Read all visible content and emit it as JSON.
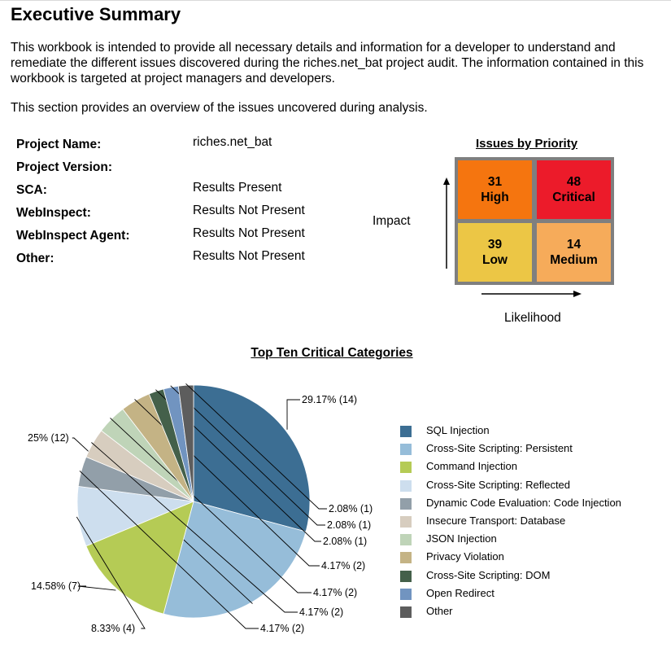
{
  "header": {
    "title": "Executive Summary",
    "intro": "This workbook is intended to provide all necessary details and information for a developer to understand and remediate the different issues discovered during the riches.net_bat project audit. The information contained in this workbook is targeted at project managers and developers.",
    "overview": "This section provides an overview of the issues uncovered during analysis."
  },
  "project_info": [
    {
      "label": "Project Name:",
      "value": "riches.net_bat"
    },
    {
      "label": "Project Version:",
      "value": ""
    },
    {
      "label": "SCA:",
      "value": "Results Present"
    },
    {
      "label": "WebInspect:",
      "value": "Results Not Present"
    },
    {
      "label": "WebInspect Agent:",
      "value": "Results Not Present"
    },
    {
      "label": "Other:",
      "value": "Results Not Present"
    }
  ],
  "priority_grid": {
    "title": "Issues by Priority",
    "y_axis_label": "Impact",
    "x_axis_label": "Likelihood",
    "cells": {
      "high": {
        "count": "31",
        "label": "High",
        "color": "#f5750f"
      },
      "critical": {
        "count": "48",
        "label": "Critical",
        "color": "#ec1b2a"
      },
      "low": {
        "count": "39",
        "label": "Low",
        "color": "#ecc645"
      },
      "medium": {
        "count": "14",
        "label": "Medium",
        "color": "#f6ab5a"
      }
    }
  },
  "chart_data": {
    "type": "pie",
    "title": "Top Ten Critical Categories",
    "total": 48,
    "slices": [
      {
        "name": "SQL Injection",
        "count": 14,
        "percent": 29.17,
        "label": "29.17% (14)",
        "color": "#3c6e93"
      },
      {
        "name": "Cross-Site Scripting: Persistent",
        "count": 12,
        "percent": 25,
        "label": "25% (12)",
        "color": "#96bdd9"
      },
      {
        "name": "Command Injection",
        "count": 7,
        "percent": 14.58,
        "label": "14.58% (7)",
        "color": "#b5cb55"
      },
      {
        "name": "Cross-Site Scripting: Reflected",
        "count": 4,
        "percent": 8.33,
        "label": "8.33% (4)",
        "color": "#cddeee"
      },
      {
        "name": "Dynamic Code Evaluation: Code Injection",
        "count": 2,
        "percent": 4.17,
        "label": "4.17% (2)",
        "color": "#929fa9"
      },
      {
        "name": "Insecure Transport: Database",
        "count": 2,
        "percent": 4.17,
        "label": "4.17% (2)",
        "color": "#d7cdbf"
      },
      {
        "name": "JSON Injection",
        "count": 2,
        "percent": 4.17,
        "label": "4.17% (2)",
        "color": "#bfd4b8"
      },
      {
        "name": "Privacy Violation",
        "count": 2,
        "percent": 4.17,
        "label": "4.17% (2)",
        "color": "#c4b385"
      },
      {
        "name": "Cross-Site Scripting: DOM",
        "count": 1,
        "percent": 2.08,
        "label": "2.08% (1)",
        "color": "#44604a"
      },
      {
        "name": "Open Redirect",
        "count": 1,
        "percent": 2.08,
        "label": "2.08% (1)",
        "color": "#7194c0"
      },
      {
        "name": "Other",
        "count": 1,
        "percent": 2.08,
        "label": "2.08% (1)",
        "color": "#5d5d5d"
      }
    ]
  }
}
